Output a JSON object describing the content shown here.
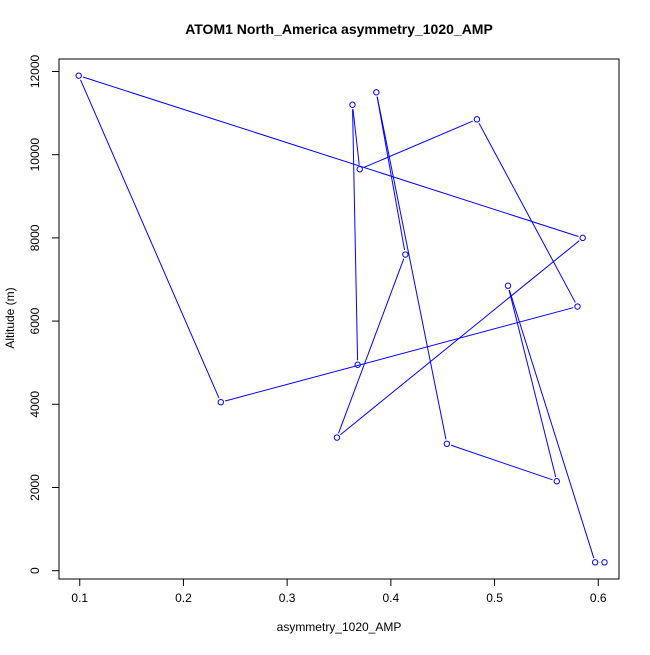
{
  "chart_data": {
    "type": "line",
    "title": "ATOM1 North_America asymmetry_1020_AMP",
    "xlabel": "asymmetry_1020_AMP",
    "ylabel": "Altitude (m)",
    "xlim": [
      0.08,
      0.62
    ],
    "ylim": [
      -200,
      12300
    ],
    "xticks": [
      0.1,
      0.2,
      0.3,
      0.4,
      0.5,
      0.6
    ],
    "xtick_labels": [
      "0.1",
      "0.2",
      "0.3",
      "0.4",
      "0.5",
      "0.6"
    ],
    "yticks": [
      0,
      2000,
      4000,
      6000,
      8000,
      10000,
      12000
    ],
    "ytick_labels": [
      "0",
      "2000",
      "4000",
      "6000",
      "8000",
      "10000",
      "12000"
    ],
    "grid": false,
    "series": [
      {
        "color": "#0000ff",
        "markers": "open-circle",
        "x": [
          0.606,
          0.597,
          0.513,
          0.56,
          0.454,
          0.386,
          0.414,
          0.348,
          0.585,
          0.099,
          0.236,
          0.58,
          0.483,
          0.37,
          0.363,
          0.368
        ],
        "y": [
          200,
          200,
          6850,
          2150,
          3050,
          11500,
          7600,
          3200,
          8000,
          11900,
          4050,
          6350,
          10850,
          9650,
          11200,
          4950
        ]
      }
    ]
  }
}
